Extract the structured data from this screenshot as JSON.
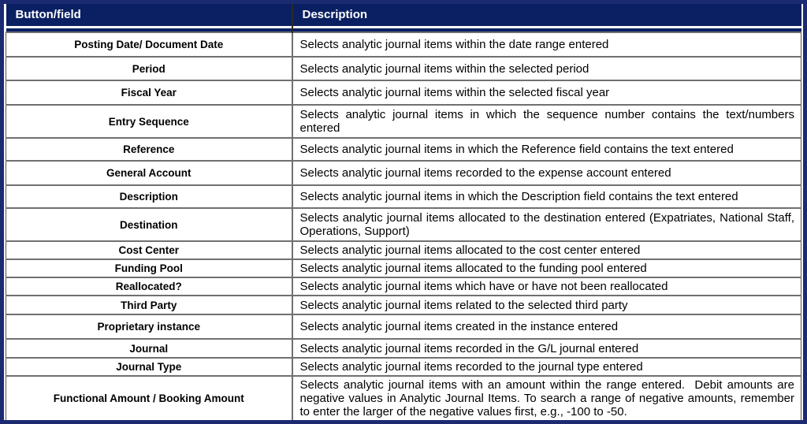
{
  "colors": {
    "header_bg": "#0a2062",
    "frame_border": "#1c2a72",
    "grid_line": "#707070",
    "header_text": "#ffffff",
    "body_text": "#000000"
  },
  "table": {
    "headers": [
      "Button/field",
      "Description"
    ],
    "rows": [
      {
        "field": "Posting Date/ Document Date",
        "description": "Selects analytic journal items within the date range entered"
      },
      {
        "field": "Period",
        "description": "Selects analytic journal items within the selected period"
      },
      {
        "field": "Fiscal Year",
        "description": "Selects analytic journal items within the selected fiscal year"
      },
      {
        "field": "Entry Sequence",
        "description": "Selects analytic journal items in which the sequence number contains the text/numbers entered"
      },
      {
        "field": "Reference",
        "description": "Selects analytic journal items in which the Reference field contains the text entered"
      },
      {
        "field": "General Account",
        "description": "Selects analytic journal items recorded to the expense account entered"
      },
      {
        "field": "Description",
        "description": "Selects analytic journal items in which the Description field contains the text entered"
      },
      {
        "field": "Destination",
        "description": "Selects analytic journal items allocated to the destination entered (Expatriates, National Staff, Operations, Support)"
      },
      {
        "field": "Cost Center",
        "description": "Selects analytic journal items allocated to the cost center entered"
      },
      {
        "field": "Funding Pool",
        "description": "Selects analytic journal items allocated to the funding pool entered"
      },
      {
        "field": "Reallocated?",
        "description": "Selects analytic journal items which have or have not been reallocated"
      },
      {
        "field": "Third Party",
        "description": "Selects analytic journal items related to the selected third party"
      },
      {
        "field": "Proprietary instance",
        "description": "Selects analytic journal items created in the instance entered"
      },
      {
        "field": "Journal",
        "description": "Selects analytic journal items recorded in the G/L journal entered"
      },
      {
        "field": "Journal Type",
        "description": "Selects analytic journal items recorded to the journal type entered"
      },
      {
        "field": "Functional Amount / Booking Amount",
        "description": "Selects analytic journal items with an amount within the range entered.  Debit amounts are negative values in Analytic Journal Items. To search a range of negative amounts, remember to enter the larger of the negative values first, e.g., -100 to -50."
      }
    ]
  }
}
